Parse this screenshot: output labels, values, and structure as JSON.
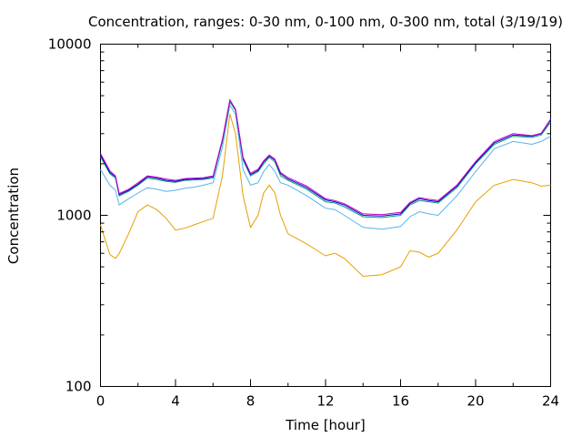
{
  "chart_data": {
    "type": "line",
    "title": "Concentration, ranges: 0-30 nm, 0-100 nm, 0-300 nm, total (3/19/19)",
    "xlabel": "Time [hour]",
    "ylabel": "Concentration",
    "xlim": [
      0,
      24
    ],
    "ylim": [
      100,
      10000
    ],
    "yscale": "log",
    "x_ticks": [
      "0",
      "4",
      "8",
      "12",
      "16",
      "20",
      "24"
    ],
    "y_ticks": [
      "100",
      "1000",
      "10000"
    ],
    "grid": false,
    "legend": "none",
    "x": [
      0,
      0.5,
      0.8,
      1,
      1.5,
      2,
      2.5,
      3,
      3.5,
      4,
      4.5,
      5,
      5.5,
      6,
      6.5,
      6.9,
      7.2,
      7.6,
      8,
      8.4,
      8.7,
      9,
      9.3,
      9.6,
      10,
      11,
      12,
      12.5,
      13,
      14,
      15,
      16,
      16.5,
      17,
      17.5,
      18,
      19,
      20,
      21,
      22,
      23,
      23.5,
      24
    ],
    "series": [
      {
        "color": "#e69f00",
        "values": [
          880,
          590,
          560,
          600,
          780,
          1050,
          1150,
          1080,
          960,
          820,
          840,
          880,
          920,
          960,
          1700,
          3900,
          3000,
          1300,
          850,
          1000,
          1350,
          1500,
          1350,
          1000,
          780,
          680,
          580,
          600,
          560,
          440,
          450,
          500,
          620,
          610,
          570,
          600,
          820,
          1200,
          1500,
          1620,
          1550,
          1480,
          1500
        ]
      },
      {
        "color": "#56b4e9",
        "values": [
          1850,
          1500,
          1400,
          1150,
          1250,
          1350,
          1450,
          1420,
          1380,
          1400,
          1440,
          1460,
          1500,
          1550,
          2500,
          4400,
          3900,
          1850,
          1500,
          1550,
          1800,
          1980,
          1800,
          1550,
          1500,
          1300,
          1100,
          1080,
          1000,
          850,
          830,
          860,
          980,
          1050,
          1020,
          1000,
          1300,
          1800,
          2450,
          2700,
          2600,
          2700,
          2900
        ]
      },
      {
        "color": "#009e73",
        "values": [
          2200,
          1750,
          1650,
          1300,
          1380,
          1500,
          1650,
          1620,
          1580,
          1560,
          1600,
          1610,
          1620,
          1650,
          2700,
          4600,
          4100,
          2100,
          1700,
          1800,
          2000,
          2180,
          2050,
          1700,
          1600,
          1420,
          1200,
          1180,
          1120,
          980,
          970,
          1000,
          1150,
          1220,
          1200,
          1180,
          1450,
          2000,
          2600,
          2900,
          2850,
          2950,
          3500
        ]
      },
      {
        "color": "#0000cc",
        "values": [
          2250,
          1780,
          1680,
          1320,
          1400,
          1520,
          1680,
          1650,
          1600,
          1580,
          1620,
          1630,
          1640,
          1680,
          2750,
          4700,
          4150,
          2150,
          1730,
          1830,
          2050,
          2220,
          2100,
          1750,
          1630,
          1450,
          1230,
          1200,
          1150,
          1000,
          990,
          1020,
          1170,
          1250,
          1220,
          1200,
          1480,
          2030,
          2650,
          2950,
          2900,
          3000,
          3600
        ]
      },
      {
        "color": "#cc00cc",
        "values": [
          2300,
          1820,
          1700,
          1340,
          1420,
          1550,
          1700,
          1670,
          1630,
          1600,
          1640,
          1650,
          1660,
          1700,
          2780,
          4720,
          4170,
          2180,
          1760,
          1860,
          2080,
          2250,
          2130,
          1780,
          1660,
          1480,
          1250,
          1220,
          1170,
          1020,
          1010,
          1040,
          1190,
          1270,
          1240,
          1220,
          1500,
          2060,
          2700,
          3000,
          2920,
          3020,
          3650
        ]
      }
    ]
  }
}
